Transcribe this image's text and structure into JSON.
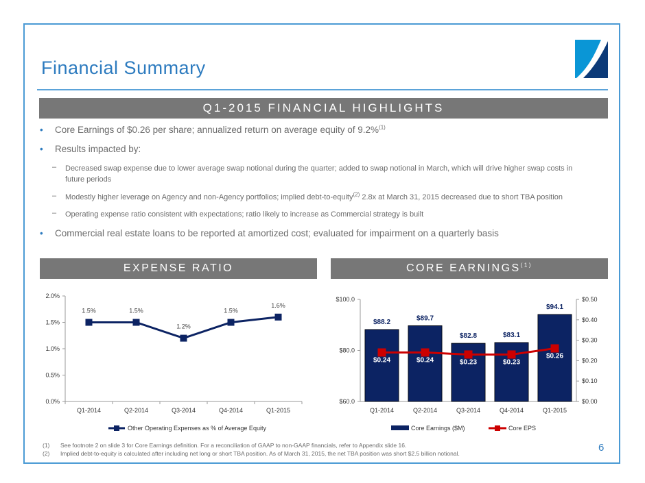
{
  "slide": {
    "title": "Financial Summary",
    "page_number": "6",
    "colors": {
      "accent": "#2d7bbf",
      "frame": "#4a9ad4",
      "section_bar": "#777777",
      "navy": "#0c2363",
      "red": "#cc0000"
    }
  },
  "highlights": {
    "header": "Q1-2015 FINANCIAL HIGHLIGHTS",
    "bullets": [
      {
        "text": "Core Earnings of $0.26 per share; annualized return on average equity of 9.2%",
        "sup": "(1)"
      },
      {
        "text": "Results impacted by:"
      },
      {
        "text": "Commercial real estate loans to be reported at amortized cost; evaluated for impairment on a quarterly basis"
      }
    ],
    "sub_bullets": [
      {
        "text": "Decreased swap expense due to lower average swap notional during the quarter; added to swap notional in March, which will drive higher swap costs in future periods"
      },
      {
        "text_before": "Modestly higher leverage on Agency and non-Agency portfolios; implied debt-to-equity",
        "sup": "(2)",
        "text_after": " 2.8x at March 31, 2015 decreased due to short TBA position"
      },
      {
        "text": "Operating expense ratio consistent with expectations; ratio likely to increase as Commercial strategy is built"
      }
    ]
  },
  "sections": {
    "expense_ratio": "EXPENSE RATIO",
    "core_earnings": "CORE EARNINGS",
    "core_earnings_sup": "(1)"
  },
  "chart_data": [
    {
      "type": "line",
      "title": "Expense Ratio",
      "categories": [
        "Q1-2014",
        "Q2-2014",
        "Q3-2014",
        "Q4-2014",
        "Q1-2015"
      ],
      "series": [
        {
          "name": "Other Operating Expenses as % of Average Equity",
          "values": [
            1.5,
            1.5,
            1.2,
            1.5,
            1.6
          ],
          "labels": [
            "1.5%",
            "1.5%",
            "1.2%",
            "1.5%",
            "1.6%"
          ],
          "color": "#0c2363"
        }
      ],
      "ylim": [
        0,
        2.0
      ],
      "yticks": [
        "0.0%",
        "0.5%",
        "1.0%",
        "1.5%",
        "2.0%"
      ],
      "ytick_values": [
        0,
        0.5,
        1.0,
        1.5,
        2.0
      ],
      "grid": false,
      "legend": "bottom"
    },
    {
      "type": "bar",
      "title": "Core Earnings",
      "categories": [
        "Q1-2014",
        "Q2-2014",
        "Q3-2014",
        "Q4-2014",
        "Q1-2015"
      ],
      "series": [
        {
          "name": "Core Earnings ($M)",
          "type": "bar",
          "axis": "left",
          "values": [
            88.2,
            89.7,
            82.8,
            83.1,
            94.1
          ],
          "labels": [
            "$88.2",
            "$89.7",
            "$82.8",
            "$83.1",
            "$94.1"
          ],
          "color": "#0c2363"
        },
        {
          "name": "Core EPS",
          "type": "line",
          "axis": "right",
          "values": [
            0.24,
            0.24,
            0.23,
            0.23,
            0.26
          ],
          "labels": [
            "$0.24",
            "$0.24",
            "$0.23",
            "$0.23",
            "$0.26"
          ],
          "color": "#cc0000"
        }
      ],
      "ylim": [
        60,
        100
      ],
      "yticks": [
        "$60.0",
        "$80.0",
        "$100.0"
      ],
      "ytick_values": [
        60,
        80,
        100
      ],
      "y2lim": [
        0,
        0.5
      ],
      "y2ticks": [
        "$0.00",
        "$0.10",
        "$0.20",
        "$0.30",
        "$0.40",
        "$0.50"
      ],
      "y2tick_values": [
        0,
        0.1,
        0.2,
        0.3,
        0.4,
        0.5
      ],
      "grid": false,
      "legend": "bottom"
    }
  ],
  "footnotes": [
    {
      "num": "(1)",
      "text": "See footnote 2 on slide 3 for Core Earnings definition.  For a reconciliation of GAAP to non-GAAP financials, refer to Appendix slide 16."
    },
    {
      "num": "(2)",
      "text": "Implied debt-to-equity is calculated after including net long or short TBA position.  As of March 31, 2015, the net TBA position was short $2.5 billion notional."
    }
  ]
}
